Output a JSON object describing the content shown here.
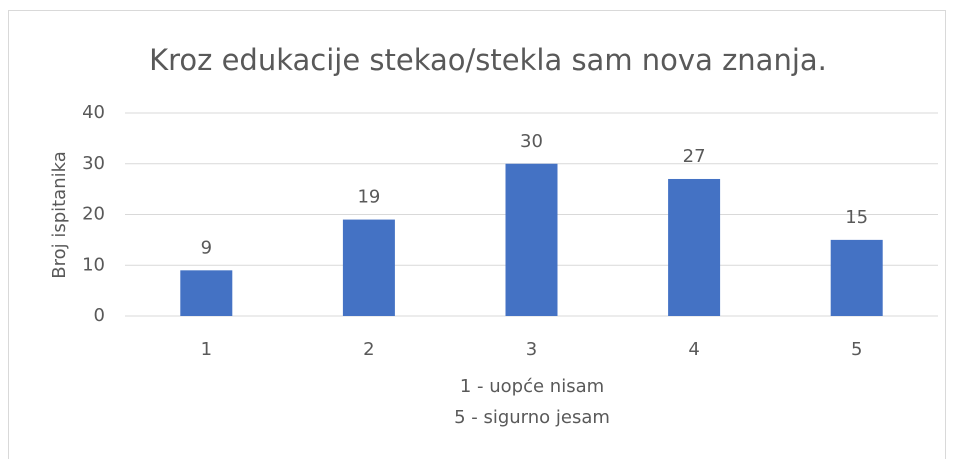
{
  "chart_data": {
    "type": "bar",
    "title": "Kroz edukacije stekao/stekla sam nova znanja.",
    "ylabel": "Broj ispitanika",
    "xlabel": [
      "1 - uopće nisam",
      "5 - sigurno jesam"
    ],
    "categories": [
      "1",
      "2",
      "3",
      "4",
      "5"
    ],
    "values": [
      9,
      19,
      30,
      27,
      15
    ],
    "color": "#4472c4",
    "ylim": [
      0,
      40
    ],
    "yticks": [
      0,
      10,
      20,
      30,
      40
    ],
    "grid": true
  }
}
